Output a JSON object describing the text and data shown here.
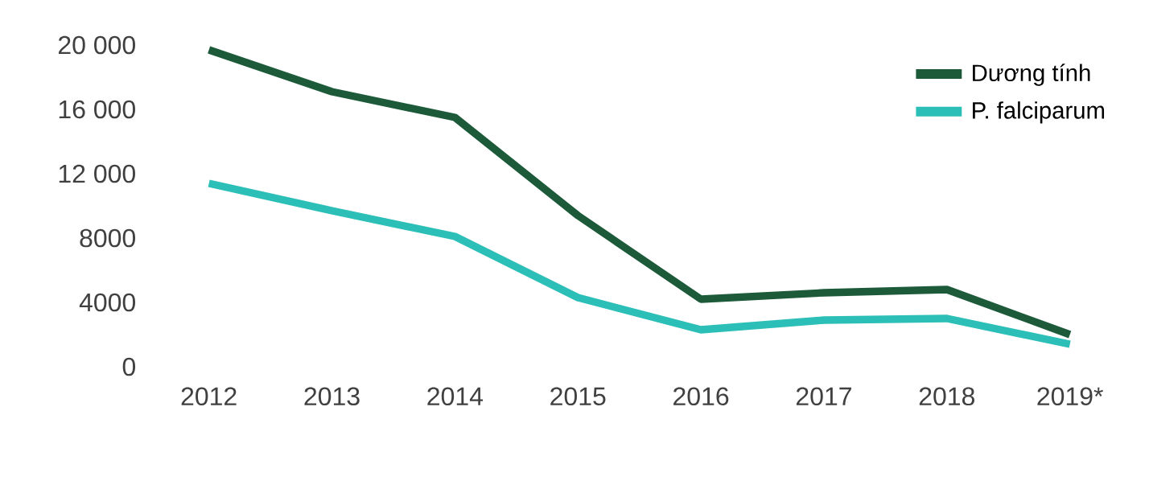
{
  "chart_data": {
    "type": "line",
    "categories": [
      "2012",
      "2013",
      "2014",
      "2015",
      "2016",
      "2017",
      "2018",
      "2019*"
    ],
    "series": [
      {
        "name": "Dương tính",
        "color": "#1d5a3a",
        "values": [
          19700,
          17100,
          15500,
          9400,
          4200,
          4600,
          4800,
          2000
        ]
      },
      {
        "name": "P. falciparum",
        "color": "#2bbfb8",
        "values": [
          11400,
          9700,
          8100,
          4300,
          2300,
          2900,
          3000,
          1400
        ]
      }
    ],
    "ylim": [
      0,
      20000
    ],
    "yticks": [
      0,
      4000,
      {
        "value": 8000,
        "label": "8000"
      },
      {
        "value": 12000,
        "label": "12 000"
      },
      {
        "value": 16000,
        "label": "16 000"
      },
      {
        "value": 20000,
        "label": "20 000"
      }
    ],
    "grid": false,
    "legend": "top right",
    "line_style": "solid"
  }
}
